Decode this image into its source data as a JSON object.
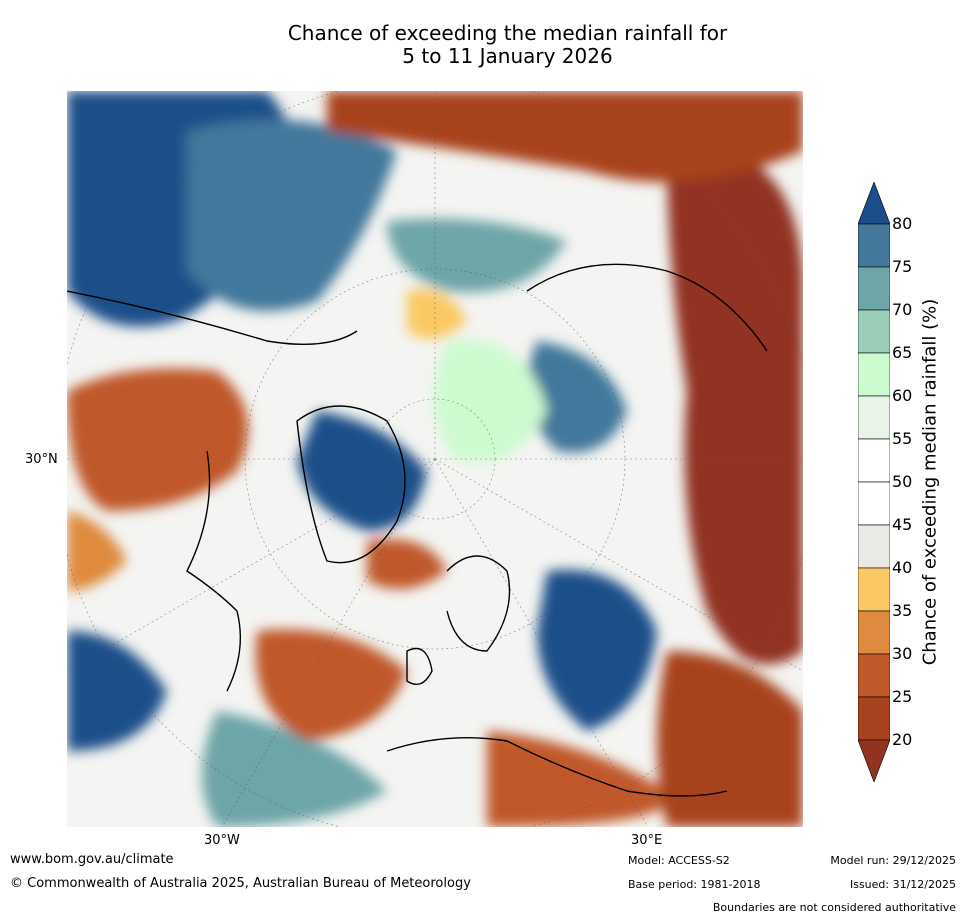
{
  "title": {
    "line1": "Chance of exceeding the median rainfall for",
    "line2": "5 to 11 January 2026"
  },
  "map": {
    "projection": "north-polar-stereographic",
    "labels": {
      "lat_30n": "30°N",
      "lon_30w": "30°W",
      "lon_30e": "30°E"
    }
  },
  "colorbar": {
    "title": "Chance of exceeding median rainfall (%)",
    "ticks": [
      "80",
      "75",
      "70",
      "65",
      "60",
      "55",
      "50",
      "45",
      "40",
      "35",
      "30",
      "25",
      "20"
    ],
    "colors": [
      "#1c4f8a",
      "#43789b",
      "#6ea5a8",
      "#9bceb8",
      "#cdfbd0",
      "#e8f4e7",
      "#ffffff",
      "#ffffff",
      "#ebe9e5",
      "#fbc963",
      "#df8a3e",
      "#c0582a",
      "#a8431f",
      "#923220"
    ]
  },
  "footer": {
    "url": "www.bom.gov.au/climate",
    "copyright": "© Commonwealth of Australia 2025, Australian Bureau of Meteorology",
    "model": "Model: ACCESS-S2",
    "base_period": "Base period: 1981-2018",
    "model_run": "Model run: 29/12/2025",
    "issued": "Issued: 31/12/2025",
    "disclaimer": "Boundaries are not considered authoritative"
  }
}
